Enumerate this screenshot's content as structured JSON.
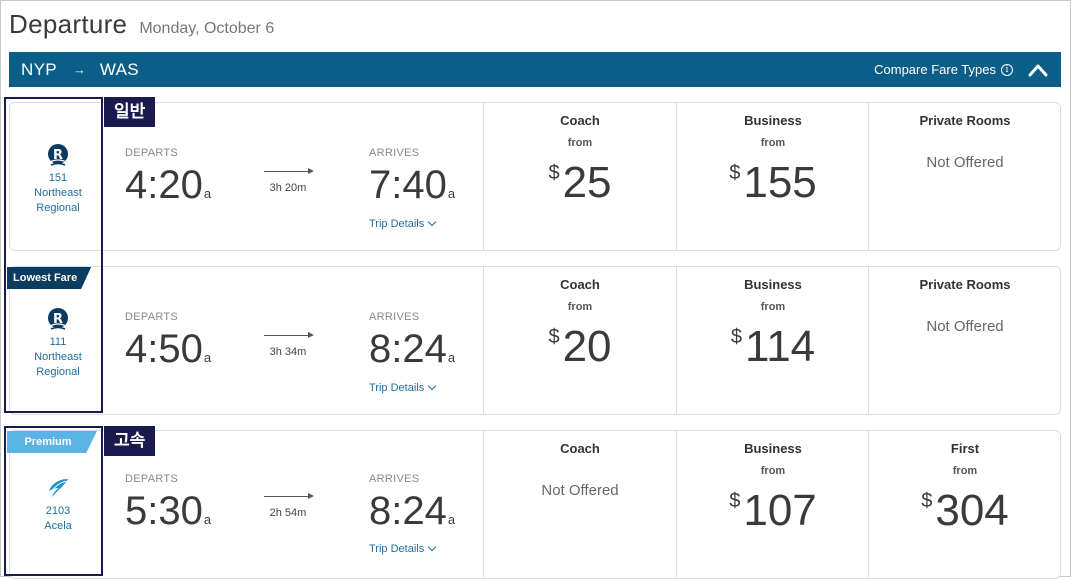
{
  "header": {
    "title": "Departure",
    "date": "Monday, October 6"
  },
  "route": {
    "origin": "NYP",
    "arrow": "→",
    "destination": "WAS",
    "compare_label": "Compare Fare Types",
    "info_glyph": "i",
    "collapse_icon": "chevron-up-icon",
    "bar_color": "#0b5e87"
  },
  "trips": [
    {
      "badge": "",
      "logo": "northeast-regional-logo",
      "train_number": "151",
      "train_line1": "Northeast",
      "train_line2": "Regional",
      "departs_label": "DEPARTS",
      "departs_time": "4:20",
      "departs_ampm": "a",
      "duration": "3h 20m",
      "arrives_label": "ARRIVES",
      "arrives_time": "7:40",
      "arrives_ampm": "a",
      "trip_details": "Trip Details",
      "fares": [
        {
          "name": "Coach",
          "from": "from",
          "currency": "$",
          "price": "25"
        },
        {
          "name": "Business",
          "from": "from",
          "currency": "$",
          "price": "155"
        },
        {
          "name": "Private Rooms",
          "status": "Not Offered"
        }
      ]
    },
    {
      "badge": "Lowest Fare",
      "logo": "northeast-regional-logo",
      "train_number": "111",
      "train_line1": "Northeast",
      "train_line2": "Regional",
      "departs_label": "DEPARTS",
      "departs_time": "4:50",
      "departs_ampm": "a",
      "duration": "3h 34m",
      "arrives_label": "ARRIVES",
      "arrives_time": "8:24",
      "arrives_ampm": "a",
      "trip_details": "Trip Details",
      "fares": [
        {
          "name": "Coach",
          "from": "from",
          "currency": "$",
          "price": "20"
        },
        {
          "name": "Business",
          "from": "from",
          "currency": "$",
          "price": "114"
        },
        {
          "name": "Private Rooms",
          "status": "Not Offered"
        }
      ]
    },
    {
      "badge": "Premium",
      "logo": "acela-logo",
      "train_number": "2103",
      "train_line1": "Acela",
      "train_line2": "",
      "departs_label": "DEPARTS",
      "departs_time": "5:30",
      "departs_ampm": "a",
      "duration": "2h 54m",
      "arrives_label": "ARRIVES",
      "arrives_time": "8:24",
      "arrives_ampm": "a",
      "trip_details": "Trip Details",
      "fares": [
        {
          "name": "Coach",
          "status": "Not Offered"
        },
        {
          "name": "Business",
          "from": "from",
          "currency": "$",
          "price": "107"
        },
        {
          "name": "First",
          "from": "from",
          "currency": "$",
          "price": "304"
        }
      ]
    }
  ],
  "annotations": {
    "regular": "일반",
    "express": "고속"
  },
  "colors": {
    "link": "#1e6f9c",
    "badge_lowest": "#0b3b5e",
    "badge_premium": "#5bb4e5",
    "annotation": "#1a1a4e"
  }
}
